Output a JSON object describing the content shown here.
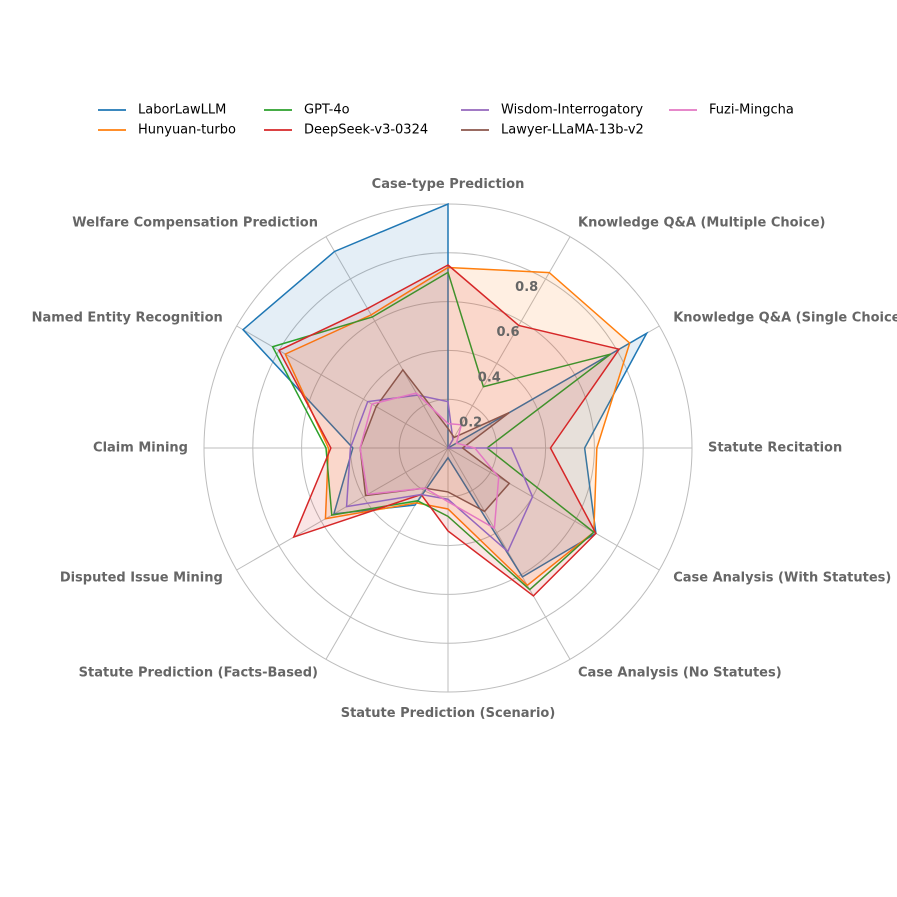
{
  "chart_data": {
    "type": "radar",
    "title": "",
    "axes": [
      "Case-type Prediction",
      "Knowledge Q&A (Multiple Choice)",
      "Knowledge Q&A (Single Choice)",
      "Statute Recitation",
      "Case Analysis (With Statutes)",
      "Case Analysis (No Statutes)",
      "Statute Prediction (Scenario)",
      "Statute Prediction (Facts-Based)",
      "Disputed Issue Mining",
      "Claim Mining",
      "Named Entity Recognition",
      "Welfare Compensation Prediction"
    ],
    "rlim": [
      0,
      1.0
    ],
    "rticks": [
      0.2,
      0.4,
      0.6,
      0.8
    ],
    "rtick_labels": [
      "0.2",
      "0.4",
      "0.6",
      "0.8"
    ],
    "grid": true,
    "legend_position": "top",
    "series": [
      {
        "name": "LaborLawLLM",
        "color": "#1f77b4",
        "filled": true,
        "values": [
          1.0,
          0.0,
          0.94,
          0.56,
          0.7,
          0.61,
          0.04,
          0.27,
          0.54,
          0.39,
          0.97,
          0.93
        ]
      },
      {
        "name": "Hunyuan-turbo",
        "color": "#ff7f0e",
        "filled": true,
        "values": [
          0.74,
          0.83,
          0.86,
          0.61,
          0.69,
          0.65,
          0.25,
          0.26,
          0.58,
          0.49,
          0.77,
          0.63
        ]
      },
      {
        "name": "GPT-4o",
        "color": "#2ca02c",
        "filled": false,
        "values": [
          0.72,
          0.29,
          0.77,
          0.16,
          0.69,
          0.67,
          0.28,
          0.25,
          0.55,
          0.5,
          0.83,
          0.62
        ]
      },
      {
        "name": "DeepSeek-v3-0324",
        "color": "#d62728",
        "filled": true,
        "values": [
          0.75,
          0.58,
          0.81,
          0.42,
          0.7,
          0.7,
          0.34,
          0.22,
          0.73,
          0.48,
          0.8,
          0.66
        ]
      },
      {
        "name": "Wisdom-Interrogatory",
        "color": "#9467bd",
        "filled": false,
        "values": [
          0.19,
          0.04,
          0.0,
          0.26,
          0.4,
          0.49,
          0.21,
          0.22,
          0.48,
          0.4,
          0.38,
          0.25
        ]
      },
      {
        "name": "Lawyer-LLaMA-13b-v2",
        "color": "#8c564b",
        "filled": true,
        "values": [
          0.08,
          0.05,
          0.29,
          0.06,
          0.29,
          0.3,
          0.18,
          0.19,
          0.39,
          0.36,
          0.34,
          0.37
        ]
      },
      {
        "name": "Fuzi-Mingcha",
        "color": "#e377c2",
        "filled": false,
        "values": [
          0.1,
          0.11,
          0.04,
          0.11,
          0.24,
          0.38,
          0.22,
          0.19,
          0.38,
          0.36,
          0.36,
          0.26
        ]
      }
    ]
  }
}
